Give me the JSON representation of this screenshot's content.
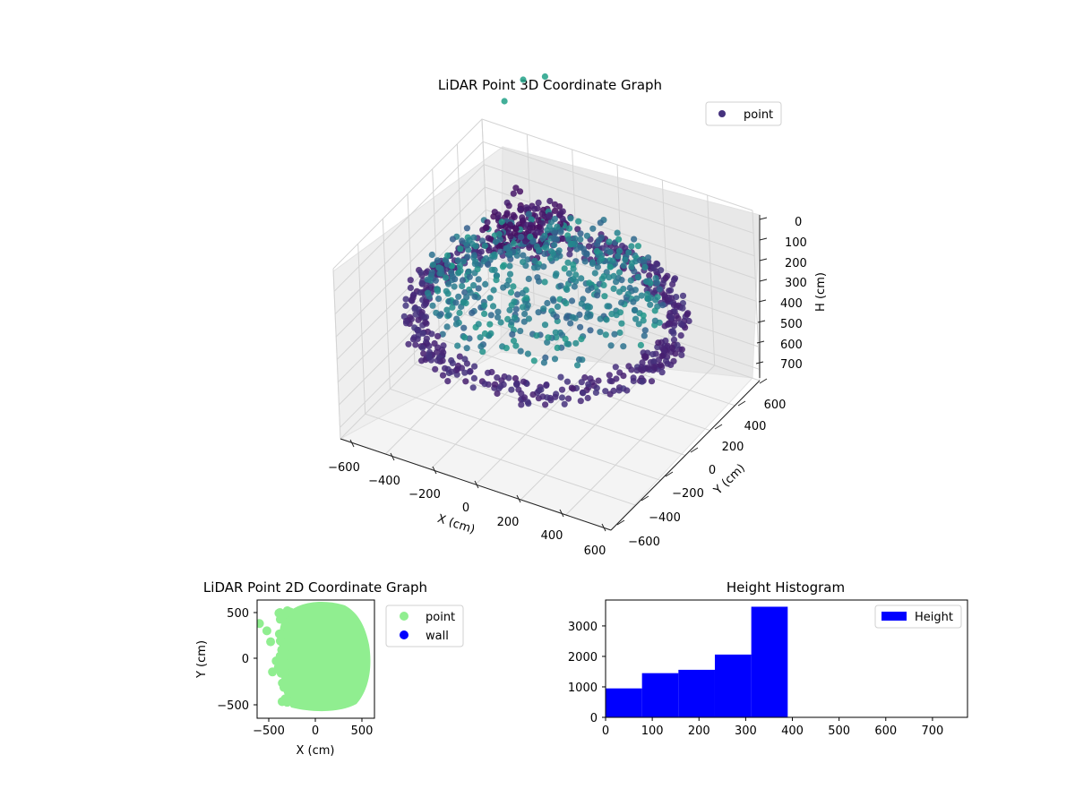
{
  "chart_data": [
    {
      "type": "scatter",
      "projection": "3d",
      "title": "LiDAR Point 3D Coordinate Graph",
      "xlabel": "X (cm)",
      "ylabel": "Y (cm)",
      "zlabel": "H (cm)",
      "xlim": [
        -600,
        600
      ],
      "ylim": [
        -600,
        600
      ],
      "zlim": [
        0,
        750
      ],
      "z_axis_inverted": true,
      "x_ticks": [
        "−600",
        "−400",
        "−200",
        "0",
        "200",
        "400",
        "600"
      ],
      "y_ticks": [
        "−600",
        "−400",
        "−200",
        "0",
        "200",
        "400",
        "600"
      ],
      "z_ticks": [
        "0",
        "100",
        "200",
        "300",
        "400",
        "500",
        "600",
        "700"
      ],
      "colormap": "viridis",
      "grid": true,
      "legend": {
        "position": "top-right",
        "entries": [
          {
            "label": "point",
            "color": "#46327e"
          }
        ]
      },
      "series": [
        {
          "name": "point",
          "description_shape": "bowl-shaped ring of points around the origin, outer radius about 550 cm, ring points at heights roughly 300–390 cm, interior floor points near 0–150 cm, a few outlier points far above",
          "sample_points": [
            {
              "x": -600,
              "y": 200,
              "h": 380
            },
            {
              "x": -560,
              "y": 100,
              "h": 370
            },
            {
              "x": -450,
              "y": -200,
              "h": 360
            },
            {
              "x": -300,
              "y": -450,
              "h": 370
            },
            {
              "x": 0,
              "y": -550,
              "h": 380
            },
            {
              "x": 300,
              "y": -500,
              "h": 380
            },
            {
              "x": 500,
              "y": -300,
              "h": 370
            },
            {
              "x": 560,
              "y": 0,
              "h": 360
            },
            {
              "x": 520,
              "y": 250,
              "h": 340
            },
            {
              "x": 400,
              "y": 450,
              "h": 320
            },
            {
              "x": 150,
              "y": 560,
              "h": 300
            },
            {
              "x": -150,
              "y": 520,
              "h": 310
            },
            {
              "x": -350,
              "y": 420,
              "h": 330
            },
            {
              "x": -200,
              "y": 300,
              "h": 200
            },
            {
              "x": -100,
              "y": 400,
              "h": 100
            },
            {
              "x": 0,
              "y": 0,
              "h": 80
            },
            {
              "x": 200,
              "y": -100,
              "h": 60
            },
            {
              "x": -350,
              "y": 350,
              "h": -300
            },
            {
              "x": -320,
              "y": 450,
              "h": -350
            },
            {
              "x": -250,
              "y": 500,
              "h": -360
            }
          ]
        }
      ]
    },
    {
      "type": "scatter",
      "title": "LiDAR Point 2D Coordinate Graph",
      "xlabel": "X (cm)",
      "ylabel": "Y (cm)",
      "xlim": [
        -620,
        620
      ],
      "ylim": [
        -620,
        620
      ],
      "x_ticks": [
        "−500",
        "0",
        "500"
      ],
      "y_ticks": [
        "500",
        "0",
        "−500"
      ],
      "legend": {
        "position": "outside-right",
        "entries": [
          {
            "label": "point",
            "color": "#90ee90"
          },
          {
            "label": "wall",
            "color": "#0000ff"
          }
        ]
      },
      "series": [
        {
          "name": "point",
          "color": "#90ee90",
          "description_shape": "dense filled blob spanning X about −300 to 560 and Y about −560 to 600, with sparser points to the left",
          "outliers": [
            {
              "x": -600,
              "y": 380
            },
            {
              "x": -520,
              "y": 300
            },
            {
              "x": -480,
              "y": 180
            },
            {
              "x": -420,
              "y": -30
            },
            {
              "x": -460,
              "y": -150
            },
            {
              "x": -380,
              "y": 500
            },
            {
              "x": -300,
              "y": 520
            }
          ]
        },
        {
          "name": "wall",
          "color": "#0000ff",
          "points": []
        }
      ]
    },
    {
      "type": "histogram",
      "title": "Height Histogram",
      "xlabel": "",
      "ylabel": "",
      "xlim": [
        0,
        775
      ],
      "ylim": [
        0,
        3850
      ],
      "x_ticks": [
        "0",
        "100",
        "200",
        "300",
        "400",
        "500",
        "600",
        "700"
      ],
      "y_ticks": [
        "0",
        "1000",
        "2000",
        "3000"
      ],
      "legend": {
        "position": "top-right",
        "entries": [
          {
            "label": "Height",
            "color": "#0000ff"
          }
        ]
      },
      "series": [
        {
          "name": "Height",
          "color": "#0000ff",
          "bin_edges": [
            0,
            78,
            156,
            234,
            312,
            390,
            468,
            546,
            624,
            702,
            780
          ],
          "counts": [
            950,
            1450,
            1560,
            2060,
            3630,
            0,
            0,
            0,
            0,
            0
          ]
        }
      ]
    }
  ]
}
